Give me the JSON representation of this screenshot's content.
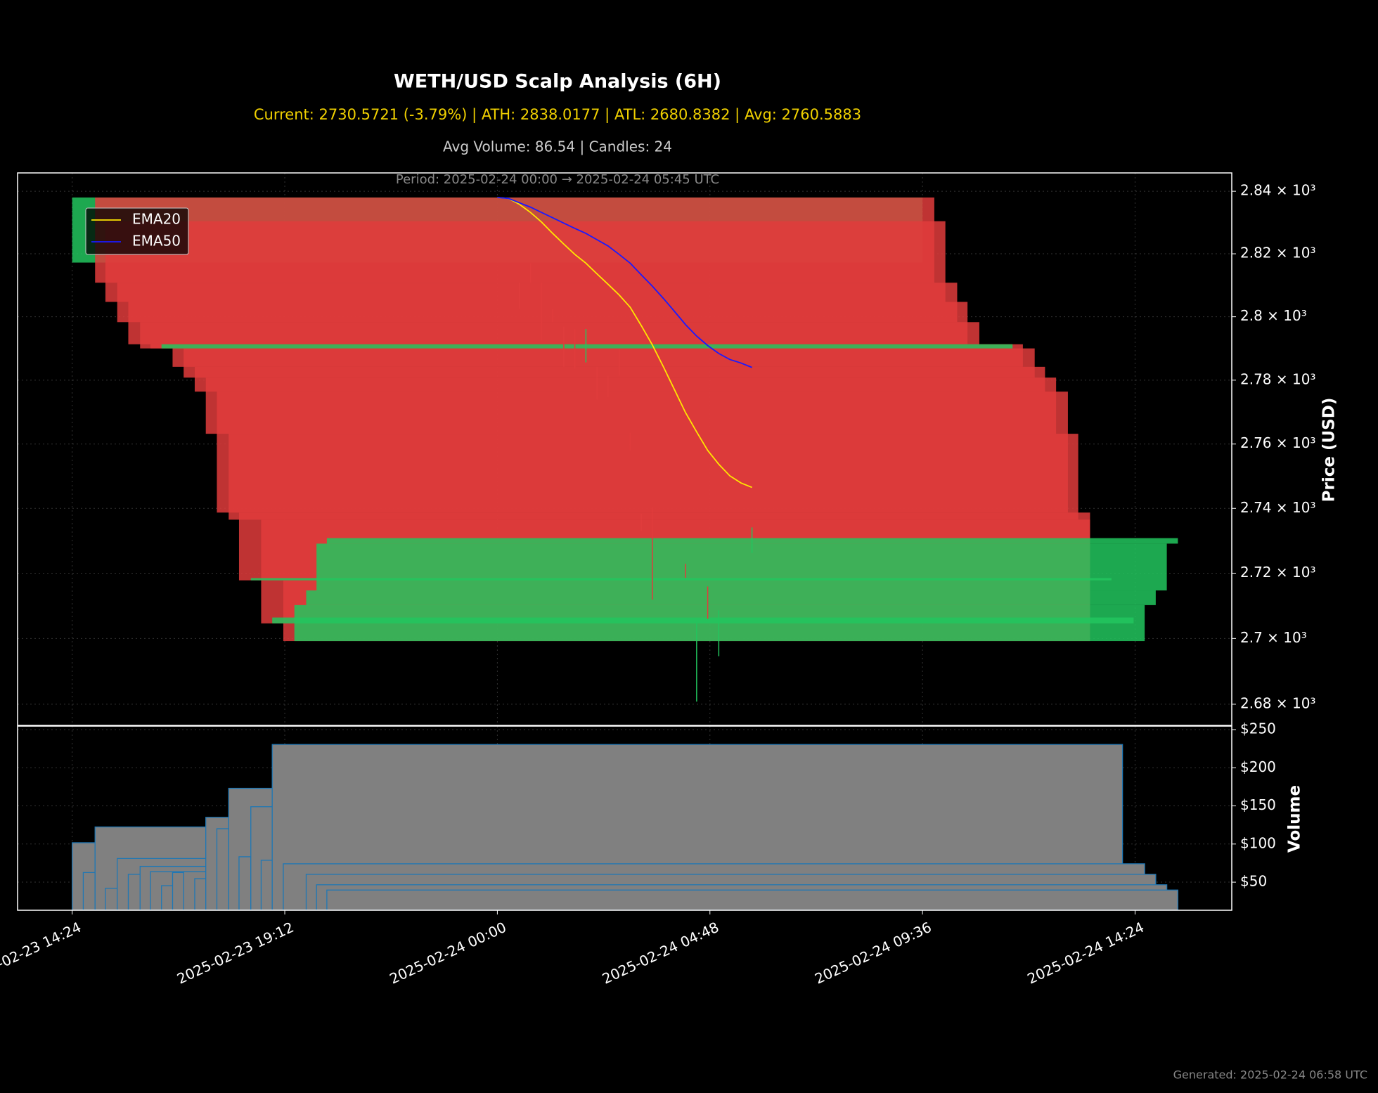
{
  "chart_data": {
    "type": "candlestick",
    "title": "WETH/USD Scalp Analysis (6H)",
    "subtitle": "Current: 2730.5721 (-3.79%) | ATH: 2838.0177 | ATL: 2680.8382 | Avg: 2760.5883",
    "info": "Avg Volume: 86.54 | Candles: 24",
    "period": "Period: 2025-02-24 00:00 → 2025-02-24 05:45 UTC",
    "footer": "Generated: 2025-02-24 06:58 UTC",
    "xlim": [
      "2025-02-23 13:10",
      "2025-02-24 16:35"
    ],
    "xticks": [
      "2025-02-23 14:24",
      "2025-02-23 19:12",
      "2025-02-24 00:00",
      "2025-02-24 04:48",
      "2025-02-24 09:36",
      "2025-02-24 14:24"
    ],
    "grid": true,
    "price": {
      "ylabel": "Price (USD)",
      "yscale": "log",
      "ylim": [
        2673.6,
        2845.9
      ],
      "yticks": [
        {
          "value": 2680,
          "label": "2.68 × 10³"
        },
        {
          "value": 2700,
          "label": "2.7 × 10³"
        },
        {
          "value": 2720,
          "label": "2.72 × 10³"
        },
        {
          "value": 2740,
          "label": "2.74 × 10³"
        },
        {
          "value": 2760,
          "label": "2.76 × 10³"
        },
        {
          "value": 2780,
          "label": "2.78 × 10³"
        },
        {
          "value": 2800,
          "label": "2.8 × 10³"
        },
        {
          "value": 2820,
          "label": "2.82 × 10³"
        },
        {
          "value": 2840,
          "label": "2.84 × 10³"
        }
      ],
      "up_color": "#22c55e",
      "down_color": "#e03c3c",
      "boxes": [
        {
          "start": "2025-02-23 14:24",
          "end": "2025-02-24 09:36",
          "open": 2817.2,
          "close": 2838.0
        },
        {
          "start": "2025-02-23 14:55",
          "end": "2025-02-24 09:52",
          "open": 2838.0,
          "close": 2810.8
        },
        {
          "start": "2025-02-23 15:09",
          "end": "2025-02-24 10:07",
          "open": 2830.4,
          "close": 2804.7
        },
        {
          "start": "2025-02-23 15:25",
          "end": "2025-02-24 10:23",
          "open": 2810.8,
          "close": 2798.3
        },
        {
          "start": "2025-02-23 15:40",
          "end": "2025-02-24 10:37",
          "open": 2804.7,
          "close": 2791.3
        },
        {
          "start": "2025-02-23 15:56",
          "end": "2025-02-24 10:53",
          "open": 2798.3,
          "close": 2790.0
        },
        {
          "start": "2025-02-23 16:10",
          "end": "2025-02-24 11:38",
          "open": 2791.3,
          "close": 2790.0
        },
        {
          "start": "2025-02-23 16:40",
          "end": "2025-02-24 11:52",
          "open": 2791.3,
          "close": 2784.2
        },
        {
          "start": "2025-02-23 16:55",
          "end": "2025-02-24 12:08",
          "open": 2790.0,
          "close": 2780.8
        },
        {
          "start": "2025-02-23 17:10",
          "end": "2025-02-24 12:22",
          "open": 2784.2,
          "close": 2776.4
        },
        {
          "start": "2025-02-23 17:25",
          "end": "2025-02-24 12:37",
          "open": 2780.8,
          "close": 2763.2
        },
        {
          "start": "2025-02-23 17:40",
          "end": "2025-02-24 12:53",
          "open": 2776.4,
          "close": 2738.7
        },
        {
          "start": "2025-02-23 17:56",
          "end": "2025-02-24 13:07",
          "open": 2763.2,
          "close": 2736.5
        },
        {
          "start": "2025-02-23 18:10",
          "end": "2025-02-24 13:23",
          "open": 2738.7,
          "close": 2717.8
        },
        {
          "start": "2025-02-23 18:40",
          "end": "2025-02-24 13:23",
          "open": 2736.5,
          "close": 2704.6
        },
        {
          "start": "2025-02-23 19:10",
          "end": "2025-02-24 13:23",
          "open": 2717.8,
          "close": 2699.2
        },
        {
          "start": "2025-02-23 16:25",
          "end": "2025-02-24 11:38",
          "open": 2790.0,
          "close": 2791.3
        },
        {
          "start": "2025-02-23 18:26",
          "end": "2025-02-24 13:52",
          "open": 2717.8,
          "close": 2718.5
        },
        {
          "start": "2025-02-23 18:55",
          "end": "2025-02-24 14:22",
          "open": 2704.6,
          "close": 2706.4
        },
        {
          "start": "2025-02-23 19:25",
          "end": "2025-02-24 14:37",
          "open": 2699.2,
          "close": 2710.2
        },
        {
          "start": "2025-02-23 19:41",
          "end": "2025-02-24 14:52",
          "open": 2710.2,
          "close": 2714.7
        },
        {
          "start": "2025-02-23 19:55",
          "end": "2025-02-24 15:07",
          "open": 2714.7,
          "close": 2729.1
        },
        {
          "start": "2025-02-23 20:09",
          "end": "2025-02-24 15:22",
          "open": 2729.1,
          "close": 2730.8
        }
      ],
      "up_wicks": [
        {
          "time": "2025-02-24 02:00",
          "high": 2796.1,
          "low": 2785.6
        },
        {
          "time": "2025-02-24 04:30",
          "high": 2704.6,
          "low": 2680.8
        },
        {
          "time": "2025-02-24 05:00",
          "high": 2708.6,
          "low": 2694.6
        },
        {
          "time": "2025-02-24 05:45",
          "high": 2734.1,
          "low": 2726.2
        }
      ],
      "down_wicks": [
        {
          "time": "2025-02-24 00:30",
          "high": 2810.8,
          "low": 2802.5
        },
        {
          "time": "2025-02-24 00:45",
          "high": 2817.0,
          "low": 2810.8
        },
        {
          "time": "2025-02-24 01:00",
          "high": 2810.8,
          "low": 2792.5
        },
        {
          "time": "2025-02-24 01:15",
          "high": 2802.5,
          "low": 2798.3
        },
        {
          "time": "2025-02-24 01:30",
          "high": 2796.9,
          "low": 2784.2
        },
        {
          "time": "2025-02-24 01:45",
          "high": 2796.1,
          "low": 2783.6
        },
        {
          "time": "2025-02-24 02:15",
          "high": 2784.2,
          "low": 2773.9
        },
        {
          "time": "2025-02-24 02:30",
          "high": 2781.4,
          "low": 2774.7
        },
        {
          "time": "2025-02-24 02:45",
          "high": 2789.7,
          "low": 2781.4
        },
        {
          "time": "2025-02-24 03:00",
          "high": 2763.5,
          "low": 2758.0
        },
        {
          "time": "2025-02-24 03:15",
          "high": 2738.4,
          "low": 2733.0
        },
        {
          "time": "2025-02-24 03:30",
          "high": 2740.3,
          "low": 2711.9
        },
        {
          "time": "2025-02-24 04:15",
          "high": 2722.9,
          "low": 2718.6
        },
        {
          "time": "2025-02-24 04:45",
          "high": 2715.9,
          "low": 2706.0
        }
      ],
      "legend": "upper left",
      "x": [
        "2025-02-24 00:00",
        "2025-02-24 00:15",
        "2025-02-24 00:30",
        "2025-02-24 00:45",
        "2025-02-24 01:00",
        "2025-02-24 01:15",
        "2025-02-24 01:30",
        "2025-02-24 01:45",
        "2025-02-24 02:00",
        "2025-02-24 02:15",
        "2025-02-24 02:30",
        "2025-02-24 02:45",
        "2025-02-24 03:00",
        "2025-02-24 03:15",
        "2025-02-24 03:30",
        "2025-02-24 03:45",
        "2025-02-24 04:00",
        "2025-02-24 04:15",
        "2025-02-24 04:30",
        "2025-02-24 04:45",
        "2025-02-24 05:00",
        "2025-02-24 05:15",
        "2025-02-24 05:30",
        "2025-02-24 05:45"
      ],
      "series": [
        {
          "name": "EMA20",
          "color": "#ffe600",
          "values": [
            2838.0,
            2837.7,
            2835.8,
            2833.2,
            2830.1,
            2826.5,
            2823.1,
            2819.8,
            2817.0,
            2813.6,
            2810.3,
            2806.9,
            2803.0,
            2797.2,
            2791.1,
            2784.2,
            2777.0,
            2769.8,
            2763.8,
            2758.0,
            2753.7,
            2750.1,
            2747.9,
            2746.5
          ]
        },
        {
          "name": "EMA50",
          "color": "#1a1aff",
          "values": [
            2838.0,
            2837.7,
            2836.3,
            2834.9,
            2833.2,
            2831.5,
            2829.8,
            2828.1,
            2826.5,
            2824.5,
            2822.5,
            2819.8,
            2817.0,
            2813.3,
            2809.7,
            2805.8,
            2801.7,
            2797.5,
            2793.9,
            2790.9,
            2788.4,
            2786.5,
            2785.4,
            2784.0
          ]
        }
      ]
    },
    "volume": {
      "type": "bar",
      "ylabel": "Volume",
      "ylim": [
        13.2,
        254.6
      ],
      "yticks": [
        {
          "value": 50,
          "label": "$50"
        },
        {
          "value": 100,
          "label": "$100"
        },
        {
          "value": 150,
          "label": "$150"
        },
        {
          "value": 200,
          "label": "$200"
        },
        {
          "value": 250,
          "label": "$250"
        }
      ],
      "color": "#808080",
      "edge_color": "#1f77b4",
      "bars": [
        {
          "start": "2025-02-23 14:24",
          "end": "2025-02-23 14:55",
          "value": 101.7
        },
        {
          "start": "2025-02-23 14:39",
          "end": "2025-02-23 14:55",
          "value": 62.6
        },
        {
          "start": "2025-02-23 14:55",
          "end": "2025-02-23 17:25",
          "value": 122.4
        },
        {
          "start": "2025-02-23 15:09",
          "end": "2025-02-23 17:25",
          "value": 42.0
        },
        {
          "start": "2025-02-23 15:25",
          "end": "2025-02-23 17:25",
          "value": 81.0
        },
        {
          "start": "2025-02-23 15:40",
          "end": "2025-02-23 17:25",
          "value": 60.3
        },
        {
          "start": "2025-02-23 15:56",
          "end": "2025-02-23 17:25",
          "value": 70.7
        },
        {
          "start": "2025-02-23 16:10",
          "end": "2025-02-23 17:25",
          "value": 63.8
        },
        {
          "start": "2025-02-23 16:25",
          "end": "2025-02-23 17:25",
          "value": 45.4
        },
        {
          "start": "2025-02-23 16:40",
          "end": "2025-02-23 17:25",
          "value": 62.6
        },
        {
          "start": "2025-02-23 16:55",
          "end": "2025-02-23 17:25",
          "value": 63.8
        },
        {
          "start": "2025-02-23 17:10",
          "end": "2025-02-23 17:25",
          "value": 54.6
        },
        {
          "start": "2025-02-23 17:25",
          "end": "2025-02-23 17:56",
          "value": 135.0
        },
        {
          "start": "2025-02-23 17:40",
          "end": "2025-02-23 17:56",
          "value": 120.1
        },
        {
          "start": "2025-02-23 17:56",
          "end": "2025-02-23 18:55",
          "value": 173.0
        },
        {
          "start": "2025-02-23 18:10",
          "end": "2025-02-23 18:26",
          "value": 83.3
        },
        {
          "start": "2025-02-23 18:26",
          "end": "2025-02-23 18:55",
          "value": 148.9
        },
        {
          "start": "2025-02-23 18:40",
          "end": "2025-02-23 18:55",
          "value": 78.7
        },
        {
          "start": "2025-02-23 18:55",
          "end": "2025-02-24 14:07",
          "value": 230.5
        },
        {
          "start": "2025-02-23 19:10",
          "end": "2025-02-24 14:37",
          "value": 74.1
        },
        {
          "start": "2025-02-23 19:41",
          "end": "2025-02-24 14:52",
          "value": 60.3
        },
        {
          "start": "2025-02-23 19:55",
          "end": "2025-02-24 15:07",
          "value": 46.6
        },
        {
          "start": "2025-02-23 20:09",
          "end": "2025-02-24 15:22",
          "value": 39.7
        }
      ]
    }
  }
}
